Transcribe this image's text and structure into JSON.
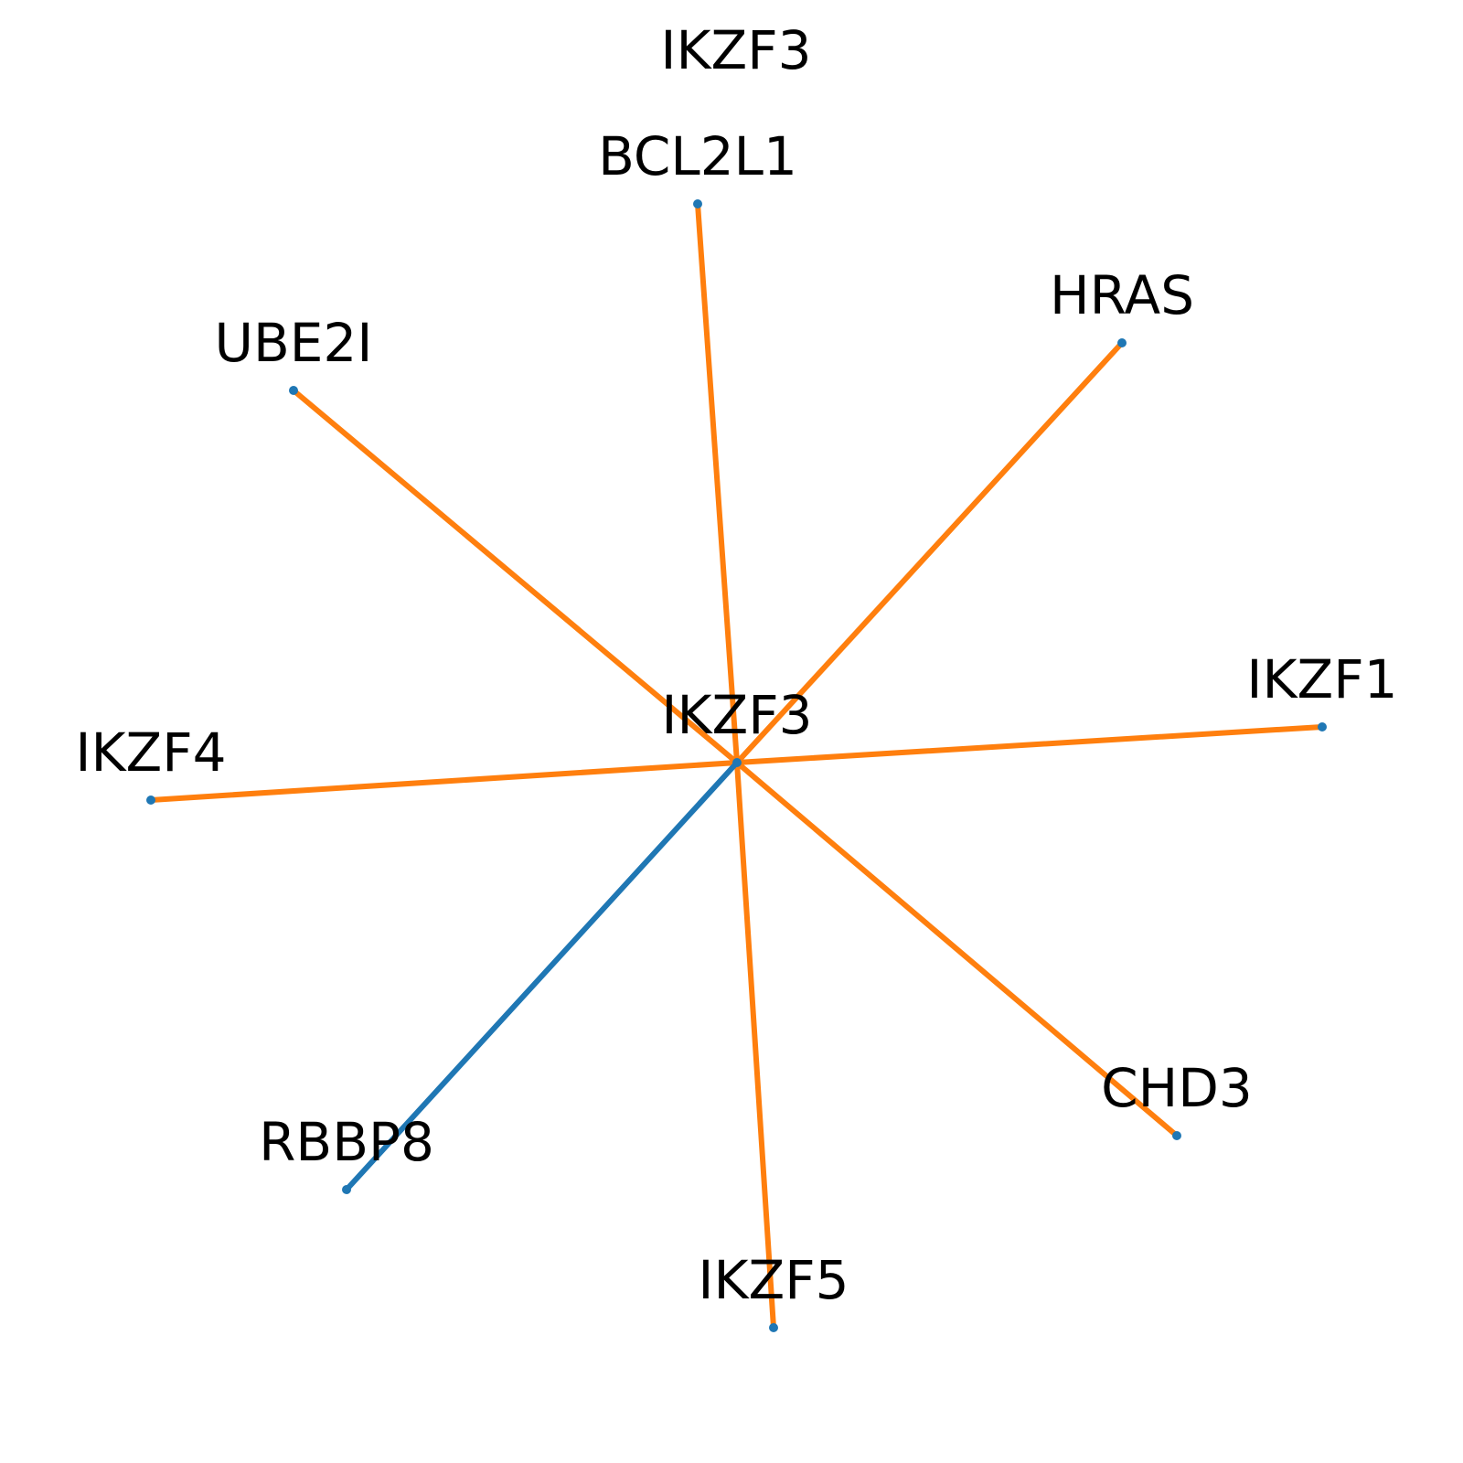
{
  "title": "IKZF3",
  "center": {
    "id": "IKZF3",
    "label": "IKZF3"
  },
  "nodes": [
    {
      "id": "BCL2L1",
      "label": "BCL2L1"
    },
    {
      "id": "HRAS",
      "label": "HRAS"
    },
    {
      "id": "UBE2I",
      "label": "UBE2I"
    },
    {
      "id": "IKZF1",
      "label": "IKZF1"
    },
    {
      "id": "IKZF4",
      "label": "IKZF4"
    },
    {
      "id": "CHD3",
      "label": "CHD3"
    },
    {
      "id": "RBBP8",
      "label": "RBBP8"
    },
    {
      "id": "IKZF5",
      "label": "IKZF5"
    }
  ],
  "edges": [
    {
      "from": "IKZF3",
      "to": "BCL2L1",
      "color": "#ff7f0e"
    },
    {
      "from": "IKZF3",
      "to": "HRAS",
      "color": "#ff7f0e"
    },
    {
      "from": "IKZF3",
      "to": "UBE2I",
      "color": "#ff7f0e"
    },
    {
      "from": "IKZF3",
      "to": "IKZF1",
      "color": "#ff7f0e"
    },
    {
      "from": "IKZF3",
      "to": "IKZF4",
      "color": "#ff7f0e"
    },
    {
      "from": "IKZF3",
      "to": "CHD3",
      "color": "#ff7f0e"
    },
    {
      "from": "IKZF3",
      "to": "IKZF5",
      "color": "#ff7f0e"
    },
    {
      "from": "IKZF3",
      "to": "RBBP8",
      "color": "#1f77b4"
    }
  ],
  "node_color": "#1f77b4"
}
